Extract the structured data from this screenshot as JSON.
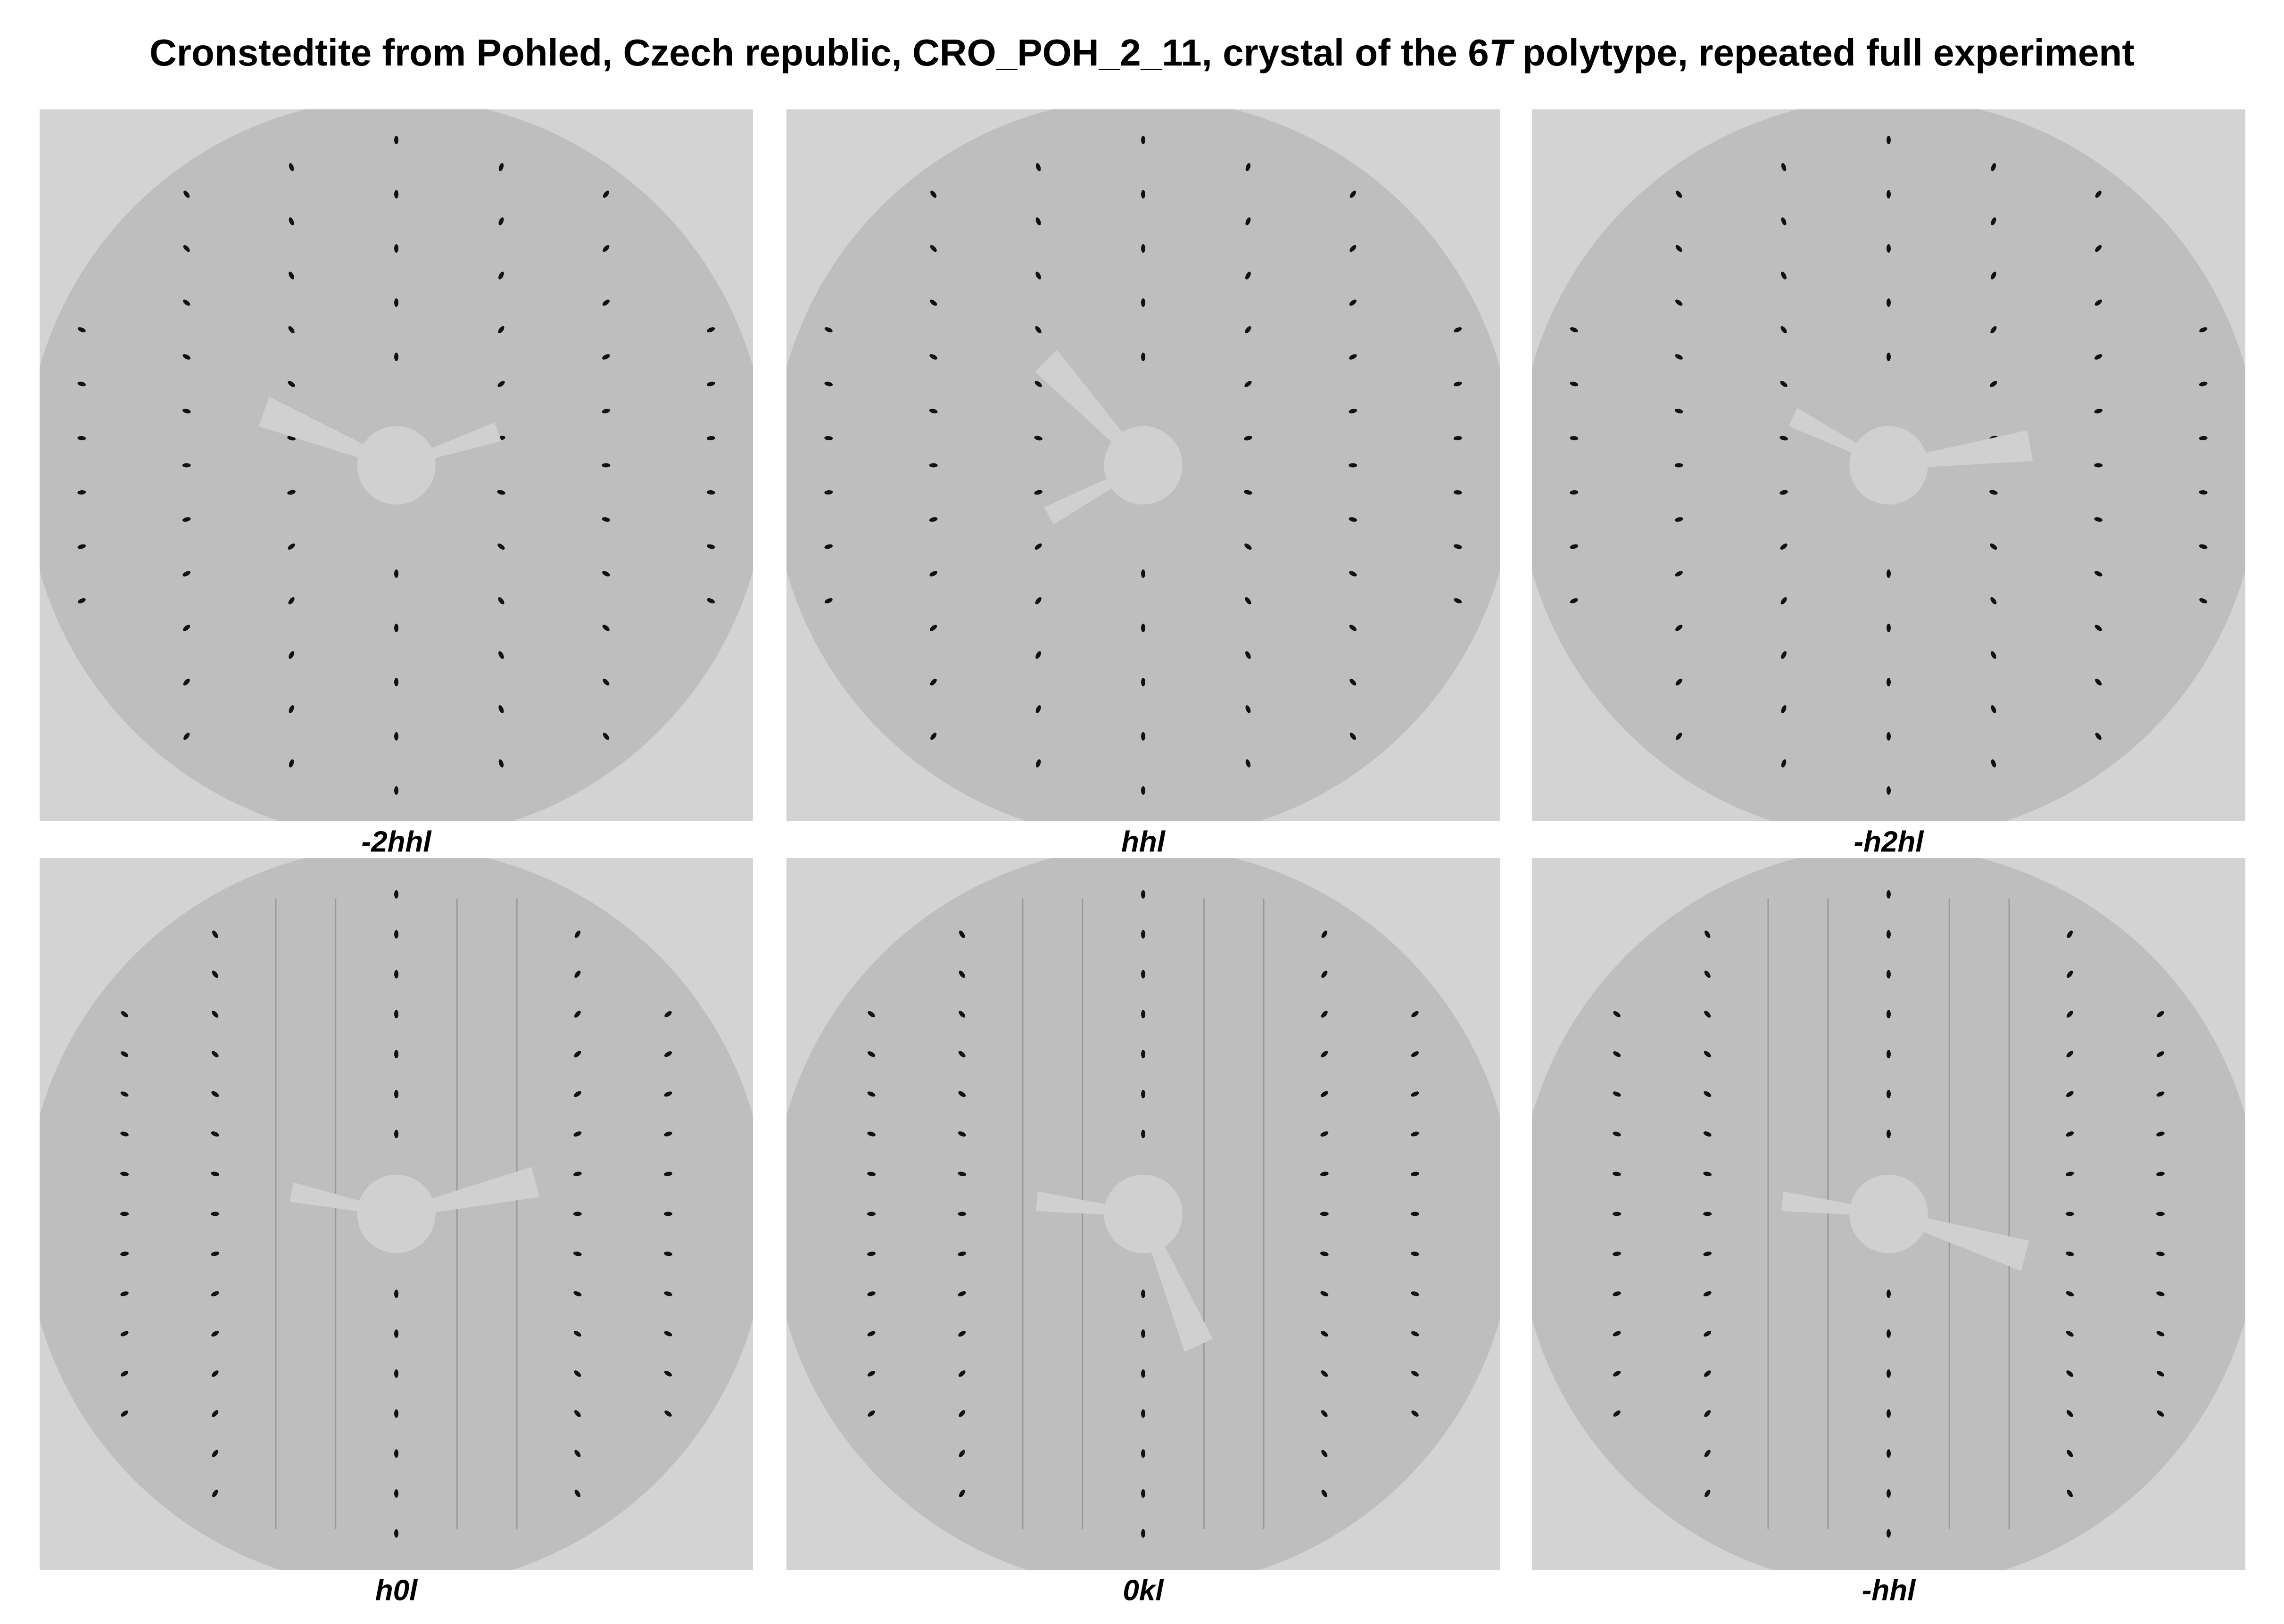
{
  "header": {
    "title_parts": [
      "Cronstedtite from Pohled, Czech republic, CRO_POH_2_11, crystal of the 6",
      "T",
      " polytype, repeated full experiment"
    ]
  },
  "panels": [
    {
      "label": "-2hhl"
    },
    {
      "label": "hhl"
    },
    {
      "label": "-h2hl"
    },
    {
      "label": "h0l"
    },
    {
      "label": "0kl"
    },
    {
      "label": "-hhl"
    }
  ]
}
